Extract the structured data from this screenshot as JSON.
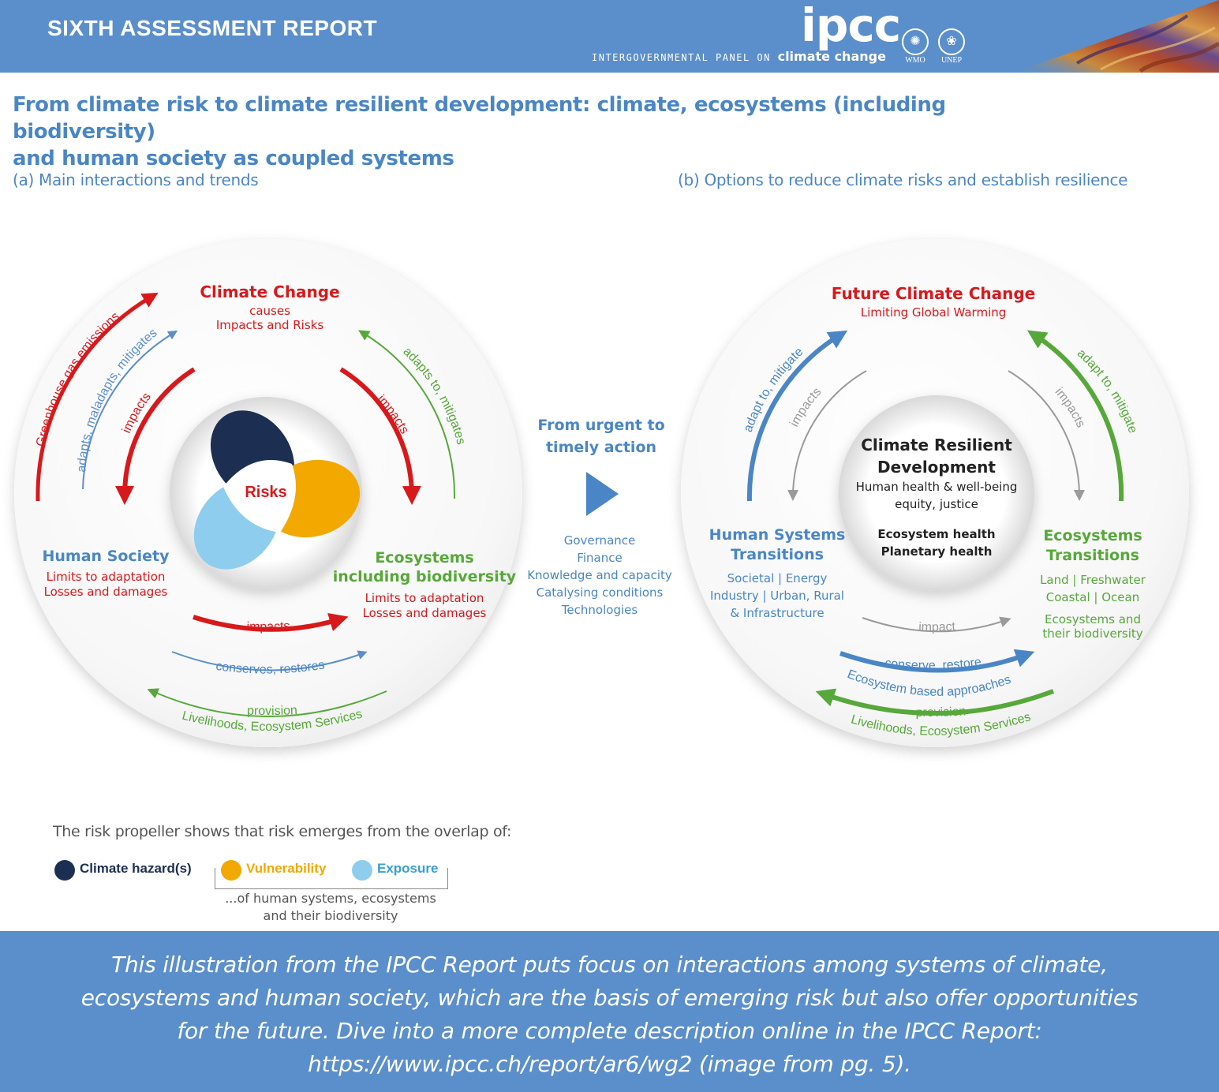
{
  "header": {
    "report_label": "SIXTH ASSESSMENT REPORT",
    "logo_text": "ipcc",
    "logo_sub_prefix": "INTERGOVERNMENTAL PANEL ON",
    "logo_sub_emph": "climate change",
    "org1": "WMO",
    "org2": "UNEP"
  },
  "title_line1": "From climate risk to climate resilient development: climate, ecosystems (including biodiversity)",
  "title_line2": "and human society as coupled systems",
  "panel_a": {
    "label": "(a) Main interactions and trends",
    "climate_title": "Climate Change",
    "climate_sub1": "causes",
    "climate_sub2": "Impacts and Risks",
    "human_title": "Human Society",
    "human_sub1": "Limits to adaptation",
    "human_sub2": "Losses and damages",
    "eco_title1": "Ecosystems",
    "eco_title2": "including biodiversity",
    "eco_sub1": "Limits to adaptation",
    "eco_sub2": "Losses and damages",
    "risks": "Risks",
    "arc_ghg": "Greenhouse gas emissions",
    "arc_adapts": "adapts, maladapts, mitigates",
    "arc_impacts_left": "impacts",
    "arc_impacts_right": "impacts",
    "arc_adapts_to": "adapts to, mitigates",
    "arc_impacts_bottom": "impacts",
    "arc_conserves": "conserves, restores",
    "arc_provision": "provision",
    "arc_livelihoods": "Livelihoods, Ecosystem Services"
  },
  "middle": {
    "line1": "From urgent to",
    "line2": "timely action",
    "items": [
      "Governance",
      "Finance",
      "Knowledge and capacity",
      "Catalysing conditions",
      "Technologies"
    ]
  },
  "panel_b": {
    "label": "(b) Options to reduce climate risks and establish resilience",
    "future_title": "Future Climate Change",
    "future_sub": "Limiting Global Warming",
    "center_title1": "Climate Resilient",
    "center_title2": "Development",
    "center_sub1": "Human health & well-being",
    "center_sub2": "equity, justice",
    "center_sub3": "Ecosystem health",
    "center_sub4": "Planetary health",
    "human_title1": "Human Systems",
    "human_title2": "Transitions",
    "human_sub1": "Societal | Energy",
    "human_sub2": "Industry | Urban, Rural",
    "human_sub3": "& Infrastructure",
    "eco_title1": "Ecosystems",
    "eco_title2": "Transitions",
    "eco_sub1": "Land | Freshwater",
    "eco_sub2": "Coastal | Ocean",
    "eco_sub3": "Ecosystems and",
    "eco_sub4": "their biodiversity",
    "arc_adapt_left": "adapt to, mitigate",
    "arc_impacts_left": "impacts",
    "arc_impacts_right": "impacts",
    "arc_adapt_right": "adapt to, mitigate",
    "arc_impact_bottom": "impact",
    "arc_conserve": "conserve, restore",
    "arc_eba": "Ecosystem based approaches",
    "arc_provision": "provision",
    "arc_livelihoods": "Livelihoods, Ecosystem Services"
  },
  "legend": {
    "title": "The risk propeller shows that risk emerges from the overlap of:",
    "hazard": "Climate hazard(s)",
    "vulnerability": "Vulnerability",
    "exposure": "Exposure",
    "note1": "...of human systems, ecosystems",
    "note2": "and their biodiversity"
  },
  "footer": {
    "line1": "This illustration from the IPCC Report puts focus on interactions among systems of climate,",
    "line2": "ecosystems and human society, which are the basis of emerging risk but also offer opportunities",
    "line3": "for the future. Dive into a more complete description online in the IPCC Report:",
    "line4": "https://www.ipcc.ch/report/ar6/wg2 (image from pg. 5)."
  },
  "colors": {
    "header_blue": "#5b8fcb",
    "title_blue": "#4a86c5",
    "red": "#d7191c",
    "green": "#57a83a",
    "grey_arrow": "#9a9a9a",
    "hazard": "#1c2f52",
    "vulnerability": "#f3a800",
    "exposure": "#8fcdef"
  }
}
